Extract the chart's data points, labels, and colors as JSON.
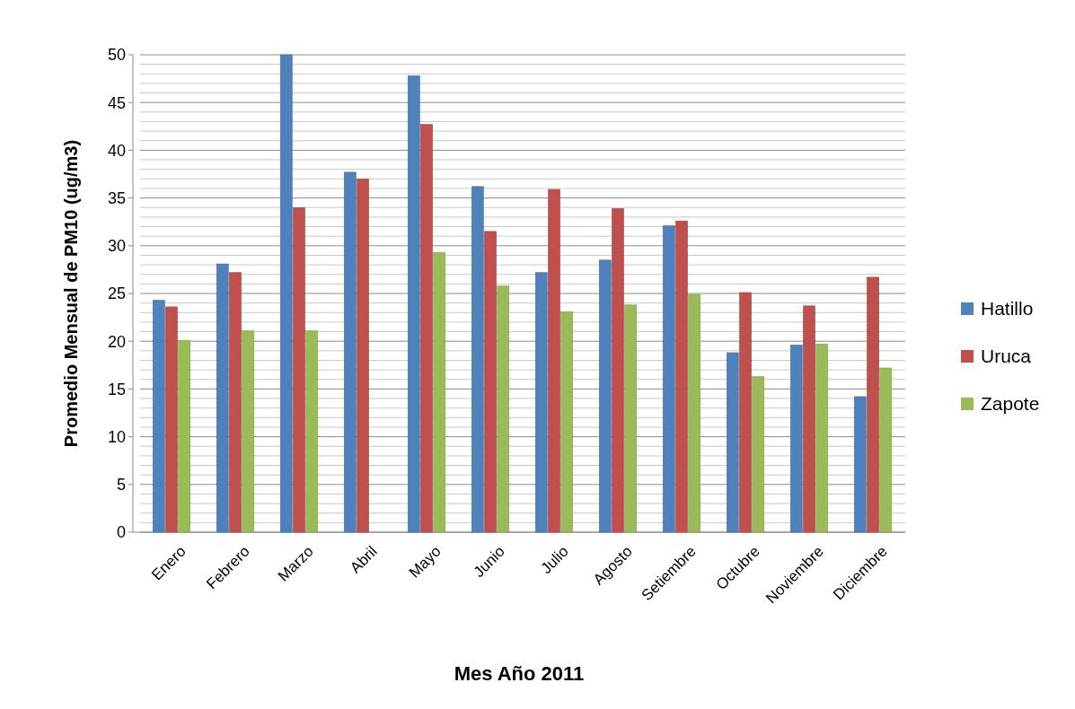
{
  "chart_data": {
    "type": "bar",
    "xlabel": "Mes Año 2011",
    "ylabel": "Promedio Mensual de PM10 (ug/m3)",
    "categories": [
      "Enero",
      "Febrero",
      "Marzo",
      "Abril",
      "Mayo",
      "Junio",
      "Julio",
      "Agosto",
      "Setiembre",
      "Octubre",
      "Noviembre",
      "Diciembre"
    ],
    "series": [
      {
        "name": "Hatillo",
        "color": "#4f81bd",
        "values": [
          24.3,
          28.1,
          50,
          37.7,
          47.8,
          36.2,
          27.2,
          28.5,
          32.1,
          18.8,
          19.6,
          14.2
        ]
      },
      {
        "name": "Uruca",
        "color": "#c0504d",
        "values": [
          23.6,
          27.2,
          34,
          37,
          42.7,
          31.5,
          35.9,
          33.9,
          32.6,
          25.1,
          23.7,
          26.7
        ]
      },
      {
        "name": "Zapote",
        "color": "#9bbb59",
        "values": [
          20.1,
          21.1,
          21.1,
          null,
          29.3,
          25.8,
          23.1,
          23.8,
          24.9,
          16.3,
          19.7,
          17.2
        ]
      }
    ],
    "ylim": [
      0,
      50
    ],
    "yticks": [
      0,
      {
        "value": 1,
        "label": null
      },
      {
        "value": 2,
        "label": null
      },
      {
        "value": 3,
        "label": null
      },
      {
        "value": 4,
        "label": null
      },
      5,
      {
        "value": 6,
        "label": null
      },
      {
        "value": 7,
        "label": null
      },
      {
        "value": 8,
        "label": null
      },
      {
        "value": 9,
        "label": null
      },
      10,
      {
        "value": 11,
        "label": null
      },
      {
        "value": 12,
        "label": null
      },
      {
        "value": 13,
        "label": null
      },
      {
        "value": 14,
        "label": null
      },
      15,
      {
        "value": 16,
        "label": null
      },
      {
        "value": 17,
        "label": null
      },
      {
        "value": 18,
        "label": null
      },
      {
        "value": 19,
        "label": null
      },
      20,
      {
        "value": 21,
        "label": null
      },
      {
        "value": 22,
        "label": null
      },
      {
        "value": 23,
        "label": null
      },
      {
        "value": 24,
        "label": null
      },
      25,
      {
        "value": 26,
        "label": null
      },
      {
        "value": 27,
        "label": null
      },
      {
        "value": 28,
        "label": null
      },
      {
        "value": 29,
        "label": null
      },
      30,
      {
        "value": 31,
        "label": null
      },
      {
        "value": 32,
        "label": null
      },
      {
        "value": 33,
        "label": null
      },
      {
        "value": 34,
        "label": null
      },
      35,
      {
        "value": 36,
        "label": null
      },
      {
        "value": 37,
        "label": null
      },
      {
        "value": 38,
        "label": null
      },
      {
        "value": 39,
        "label": null
      },
      40,
      {
        "value": 41,
        "label": null
      },
      {
        "value": 42,
        "label": null
      },
      {
        "value": 43,
        "label": null
      },
      {
        "value": 44,
        "label": null
      },
      45,
      {
        "value": 46,
        "label": null
      },
      {
        "value": 47,
        "label": null
      },
      {
        "value": 48,
        "label": null
      },
      {
        "value": 49,
        "label": null
      },
      50
    ],
    "grid": "y",
    "legend": "right"
  }
}
